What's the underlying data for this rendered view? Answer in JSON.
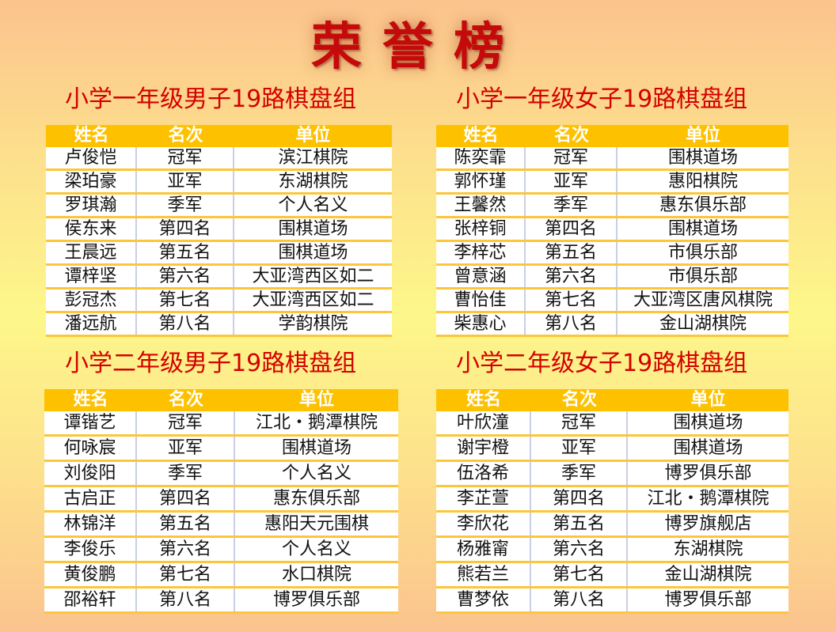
{
  "title": "荣誉榜",
  "columns": [
    "姓名",
    "名次",
    "单位"
  ],
  "accent": "#fdc100",
  "title_color": "#c40a0a",
  "groups": [
    {
      "title": "小学一年级男子19路棋盘组",
      "rows": [
        [
          "卢俊恺",
          "冠军",
          "滨江棋院"
        ],
        [
          "梁珀豪",
          "亚军",
          "东湖棋院"
        ],
        [
          "罗琪瀚",
          "季军",
          "个人名义"
        ],
        [
          "侯东来",
          "第四名",
          "围棋道场"
        ],
        [
          "王晨远",
          "第五名",
          "围棋道场"
        ],
        [
          "谭梓坚",
          "第六名",
          "大亚湾西区如二"
        ],
        [
          "彭冠杰",
          "第七名",
          "大亚湾西区如二"
        ],
        [
          "潘远航",
          "第八名",
          "学韵棋院"
        ]
      ]
    },
    {
      "title": "小学一年级女子19路棋盘组",
      "rows": [
        [
          "陈奕霏",
          "冠军",
          "围棋道场"
        ],
        [
          "郭怀瑾",
          "亚军",
          "惠阳棋院"
        ],
        [
          "王馨然",
          "季军",
          "惠东俱乐部"
        ],
        [
          "张梓铜",
          "第四名",
          "围棋道场"
        ],
        [
          "李梓芯",
          "第五名",
          "市俱乐部"
        ],
        [
          "曾意涵",
          "第六名",
          "市俱乐部"
        ],
        [
          "曹怡佳",
          "第七名",
          "大亚湾区唐风棋院"
        ],
        [
          "柴惠心",
          "第八名",
          "金山湖棋院"
        ]
      ]
    },
    {
      "title": "小学二年级男子19路棋盘组",
      "rows": [
        [
          "谭锴艺",
          "冠军",
          "江北・鹅潭棋院"
        ],
        [
          "何咏宸",
          "亚军",
          "围棋道场"
        ],
        [
          "刘俊阳",
          "季军",
          "个人名义"
        ],
        [
          "古启正",
          "第四名",
          "惠东俱乐部"
        ],
        [
          "林锦洋",
          "第五名",
          "惠阳天元围棋"
        ],
        [
          "李俊乐",
          "第六名",
          "个人名义"
        ],
        [
          "黄俊鹏",
          "第七名",
          "水口棋院"
        ],
        [
          "邵裕轩",
          "第八名",
          "博罗俱乐部"
        ]
      ]
    },
    {
      "title": "小学二年级女子19路棋盘组",
      "rows": [
        [
          "叶欣潼",
          "冠军",
          "围棋道场"
        ],
        [
          "谢宇橙",
          "亚军",
          "围棋道场"
        ],
        [
          "伍洛希",
          "季军",
          "博罗俱乐部"
        ],
        [
          "李芷萱",
          "第四名",
          "江北・鹅潭棋院"
        ],
        [
          "李欣花",
          "第五名",
          "博罗旗舰店"
        ],
        [
          "杨雅甯",
          "第六名",
          "东湖棋院"
        ],
        [
          "熊若兰",
          "第七名",
          "金山湖棋院"
        ],
        [
          "曹梦依",
          "第八名",
          "博罗俱乐部"
        ]
      ]
    }
  ]
}
